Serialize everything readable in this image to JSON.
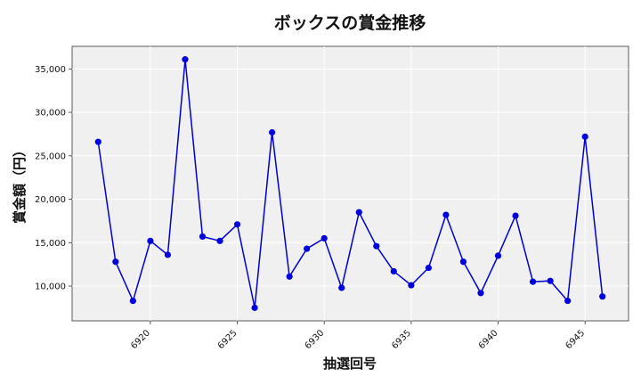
{
  "chart_data": {
    "type": "line",
    "title": "ボックスの賞金推移",
    "xlabel": "抽選回号",
    "ylabel": "賞金額（円）",
    "x": [
      6917,
      6918,
      6919,
      6920,
      6921,
      6922,
      6923,
      6924,
      6925,
      6926,
      6927,
      6928,
      6929,
      6930,
      6931,
      6932,
      6933,
      6934,
      6935,
      6936,
      6937,
      6938,
      6939,
      6940,
      6941,
      6942,
      6943,
      6944,
      6945,
      6946
    ],
    "series": [
      {
        "values": [
          26600,
          12800,
          8300,
          15200,
          13600,
          36100,
          15700,
          15200,
          17100,
          7500,
          27700,
          11100,
          14300,
          15500,
          9800,
          18500,
          14600,
          11700,
          10100,
          12100,
          18200,
          12800,
          9200,
          13500,
          18100,
          10500,
          10600,
          8300,
          27200,
          8800
        ],
        "color": "#0000cc"
      }
    ],
    "xticks": [
      6920,
      6925,
      6930,
      6935,
      6940,
      6945
    ],
    "yticks": [
      10000,
      15000,
      20000,
      25000,
      30000,
      35000
    ],
    "xtick_labels": [
      "6920",
      "6925",
      "6930",
      "6935",
      "6940",
      "6945"
    ],
    "ytick_labels": [
      "10,000",
      "15,000",
      "20,000",
      "25,000",
      "30,000",
      "35,000"
    ],
    "xlim": [
      6915.5,
      6947.5
    ],
    "ylim": [
      6000,
      37600
    ],
    "grid": true,
    "background": "#f0f0f0"
  }
}
